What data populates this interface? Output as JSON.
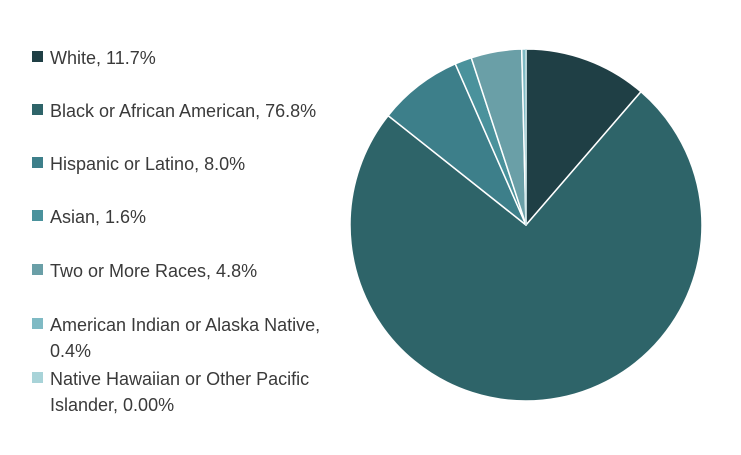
{
  "chart_data": {
    "type": "pie",
    "title": "",
    "legend_position": "left",
    "slices": [
      {
        "label": "White, 11.7%",
        "value": 11.7,
        "color": "#1F3F45"
      },
      {
        "label": "Black or African American, 76.8%",
        "value": 76.8,
        "color": "#2E6469"
      },
      {
        "label": "Hispanic or Latino, 8.0%",
        "value": 8.0,
        "color": "#3D7F8A"
      },
      {
        "label": "Asian, 1.6%",
        "value": 1.6,
        "color": "#4A929C"
      },
      {
        "label": "Two or More Races, 4.8%",
        "value": 4.8,
        "color": "#6A9FA7"
      },
      {
        "label": "American Indian or Alaska Native, 0.4%",
        "value": 0.4,
        "color": "#7FBAC4"
      },
      {
        "label": "Native Hawaiian or Other Pacific Islander, 0.00%",
        "value": 0.0,
        "color": "#A8D3D8"
      }
    ]
  }
}
